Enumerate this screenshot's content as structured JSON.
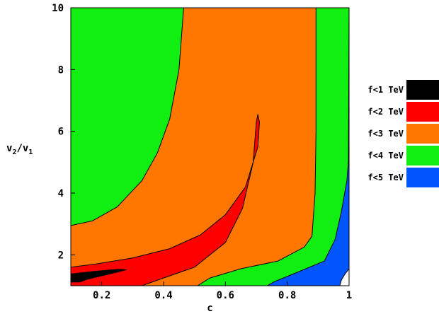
{
  "chart_data": {
    "type": "contour",
    "xlabel": "c",
    "ylabel_main": "v",
    "ylabel_sub1": "2",
    "ylabel_sep": "/v",
    "ylabel_sub2": "1",
    "xlim": [
      0.1,
      1.0
    ],
    "ylim": [
      1.0,
      10.0
    ],
    "xticks": [
      {
        "value": 0.2,
        "label": "0.2"
      },
      {
        "value": 0.4,
        "label": "0.4"
      },
      {
        "value": 0.6,
        "label": "0.6"
      },
      {
        "value": 0.8,
        "label": "0.8"
      },
      {
        "value": 1.0,
        "label": "1"
      }
    ],
    "yticks": [
      {
        "value": 2,
        "label": "2"
      },
      {
        "value": 4,
        "label": "4"
      },
      {
        "value": 6,
        "label": "6"
      },
      {
        "value": 8,
        "label": "8"
      },
      {
        "value": 10,
        "label": "10"
      }
    ],
    "regions": [
      {
        "name": "base",
        "color": "#ffffff",
        "points": [
          [
            0.1,
            1
          ],
          [
            1.0,
            1
          ],
          [
            1.0,
            10
          ],
          [
            0.1,
            10
          ]
        ]
      },
      {
        "name": "f<5 TeV",
        "color": "#0055ff",
        "points": [
          [
            0.1,
            1
          ],
          [
            1.0,
            1
          ],
          [
            1.0,
            10
          ],
          [
            0.1,
            10
          ]
        ]
      },
      {
        "name": "f<4 TeV",
        "color": "#11ee11",
        "points": [
          [
            0.1,
            1
          ],
          [
            0.735,
            1
          ],
          [
            0.76,
            1.14
          ],
          [
            0.8,
            1.3
          ],
          [
            0.86,
            1.55
          ],
          [
            0.92,
            1.8
          ],
          [
            0.955,
            2.5
          ],
          [
            0.975,
            3.4
          ],
          [
            0.993,
            4.4
          ],
          [
            0.998,
            5
          ],
          [
            1.0,
            10
          ],
          [
            0.1,
            10
          ]
        ]
      },
      {
        "name": "f<3 TeV",
        "color": "#ff7700",
        "points": [
          [
            0.1,
            1.38
          ],
          [
            0.1,
            1
          ],
          [
            0.51,
            1
          ],
          [
            0.55,
            1.25
          ],
          [
            0.65,
            1.55
          ],
          [
            0.77,
            1.8
          ],
          [
            0.855,
            2.25
          ],
          [
            0.88,
            2.6
          ],
          [
            0.89,
            4
          ],
          [
            0.893,
            6
          ],
          [
            0.893,
            10
          ],
          [
            0.465,
            10
          ],
          [
            0.45,
            8
          ],
          [
            0.42,
            6.4
          ],
          [
            0.38,
            5.3
          ],
          [
            0.33,
            4.4
          ],
          [
            0.25,
            3.55
          ],
          [
            0.17,
            3.1
          ],
          [
            0.1,
            2.95
          ]
        ]
      },
      {
        "name": "f<2 TeV",
        "color": "#ff0000",
        "points": [
          [
            0.1,
            1
          ],
          [
            0.33,
            1
          ],
          [
            0.4,
            1.25
          ],
          [
            0.5,
            1.6
          ],
          [
            0.6,
            2.4
          ],
          [
            0.655,
            3.5
          ],
          [
            0.69,
            5
          ],
          [
            0.7,
            6.3
          ],
          [
            0.705,
            6.55
          ],
          [
            0.71,
            6.3
          ],
          [
            0.705,
            5.5
          ],
          [
            0.665,
            4.2
          ],
          [
            0.6,
            3.3
          ],
          [
            0.52,
            2.65
          ],
          [
            0.42,
            2.2
          ],
          [
            0.3,
            1.9
          ],
          [
            0.18,
            1.7
          ],
          [
            0.1,
            1.6
          ]
        ]
      },
      {
        "name": "f<1 TeV",
        "color": "#000000",
        "points": [
          [
            0.1,
            1.12
          ],
          [
            0.1,
            1.38
          ],
          [
            0.18,
            1.47
          ],
          [
            0.25,
            1.53
          ],
          [
            0.28,
            1.52
          ],
          [
            0.25,
            1.44
          ],
          [
            0.2,
            1.32
          ],
          [
            0.15,
            1.2
          ],
          [
            0.13,
            1.12
          ]
        ]
      },
      {
        "name": "corner",
        "color": "#ffffff",
        "points": [
          [
            0.97,
            1
          ],
          [
            1.0,
            1
          ],
          [
            1.0,
            1.55
          ],
          [
            0.985,
            1.35
          ],
          [
            0.975,
            1.18
          ]
        ]
      }
    ],
    "legend": [
      {
        "label": "f<1 TeV",
        "color": "#000000"
      },
      {
        "label": "f<2 TeV",
        "color": "#ff0000"
      },
      {
        "label": "f<3 TeV",
        "color": "#ff7700"
      },
      {
        "label": "f<4 TeV",
        "color": "#11ee11"
      },
      {
        "label": "f<5 TeV",
        "color": "#0055ff"
      }
    ]
  }
}
